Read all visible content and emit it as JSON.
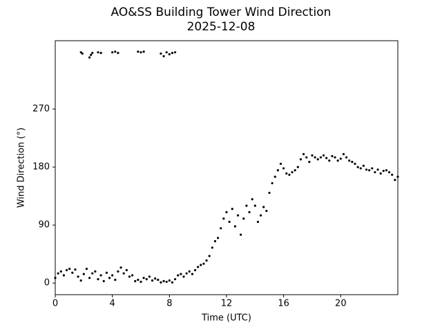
{
  "chart_data": {
    "type": "scatter",
    "title": "AO&SS Building Tower Wind Direction",
    "subtitle": "2025-12-08",
    "x_label": "Time (UTC)",
    "y_label": "Wind Direction (°)",
    "color": "#000000",
    "grid": false,
    "xlim": [
      0,
      24
    ],
    "xticks": [
      0,
      4,
      8,
      12,
      16,
      20
    ],
    "ylim": [
      -18,
      376
    ],
    "yticks": [
      0,
      90,
      180,
      270
    ],
    "x": [
      0,
      0.2,
      0.4,
      0.6,
      0.8,
      1.0,
      1.2,
      1.4,
      1.6,
      1.8,
      2.0,
      2.2,
      2.4,
      2.6,
      2.8,
      3.0,
      3.2,
      3.4,
      3.6,
      3.8,
      4.0,
      4.2,
      4.4,
      4.6,
      4.8,
      5.0,
      5.2,
      5.4,
      5.6,
      5.8,
      6.0,
      6.2,
      6.4,
      6.6,
      6.8,
      7.0,
      7.2,
      7.4,
      7.6,
      7.8,
      8.0,
      8.2,
      8.4,
      8.6,
      8.8,
      9.0,
      9.2,
      9.4,
      9.6,
      9.8,
      10.0,
      10.2,
      10.4,
      10.6,
      10.8,
      11.0,
      11.2,
      11.4,
      11.6,
      11.8,
      12.0,
      12.2,
      12.4,
      12.6,
      12.8,
      13.0,
      13.2,
      13.4,
      13.6,
      13.8,
      14.0,
      14.2,
      14.4,
      14.6,
      14.8,
      15.0,
      15.2,
      15.4,
      15.6,
      15.8,
      16.0,
      16.2,
      16.4,
      16.6,
      16.8,
      17.0,
      17.2,
      17.4,
      17.6,
      17.8,
      18.0,
      18.2,
      18.4,
      18.6,
      18.8,
      19.0,
      19.2,
      19.4,
      19.6,
      19.8,
      20.0,
      20.2,
      20.4,
      20.6,
      20.8,
      21.0,
      21.2,
      21.4,
      21.6,
      21.8,
      22.0,
      22.2,
      22.4,
      22.6,
      22.8,
      23.0,
      23.2,
      23.4,
      23.6,
      23.8,
      24.0,
      1.8,
      1.9,
      2.4,
      2.5,
      2.6,
      3.0,
      3.2,
      4.0,
      4.2,
      4.4,
      5.8,
      6.0,
      6.2,
      7.4,
      7.6,
      7.8,
      8.0,
      8.2,
      8.4
    ],
    "values": [
      8,
      15,
      18,
      12,
      20,
      22,
      16,
      21,
      10,
      4,
      14,
      22,
      8,
      15,
      18,
      6,
      12,
      3,
      16,
      8,
      12,
      5,
      18,
      24,
      15,
      20,
      10,
      12,
      3,
      5,
      2,
      8,
      6,
      10,
      4,
      7,
      5,
      1,
      3,
      2,
      4,
      1,
      6,
      12,
      14,
      10,
      15,
      18,
      14,
      20,
      25,
      28,
      30,
      35,
      42,
      55,
      65,
      70,
      85,
      100,
      110,
      95,
      115,
      88,
      105,
      75,
      100,
      120,
      110,
      130,
      120,
      95,
      105,
      118,
      112,
      140,
      155,
      165,
      175,
      185,
      178,
      170,
      168,
      172,
      175,
      180,
      192,
      200,
      195,
      188,
      198,
      195,
      192,
      195,
      198,
      194,
      190,
      197,
      195,
      190,
      193,
      200,
      195,
      190,
      188,
      185,
      180,
      178,
      182,
      176,
      175,
      178,
      172,
      176,
      170,
      174,
      175,
      172,
      168,
      160,
      165,
      358,
      356,
      350,
      354,
      357,
      358,
      357,
      358,
      359,
      357,
      359,
      358,
      359,
      356,
      352,
      358,
      355,
      357,
      358
    ]
  }
}
